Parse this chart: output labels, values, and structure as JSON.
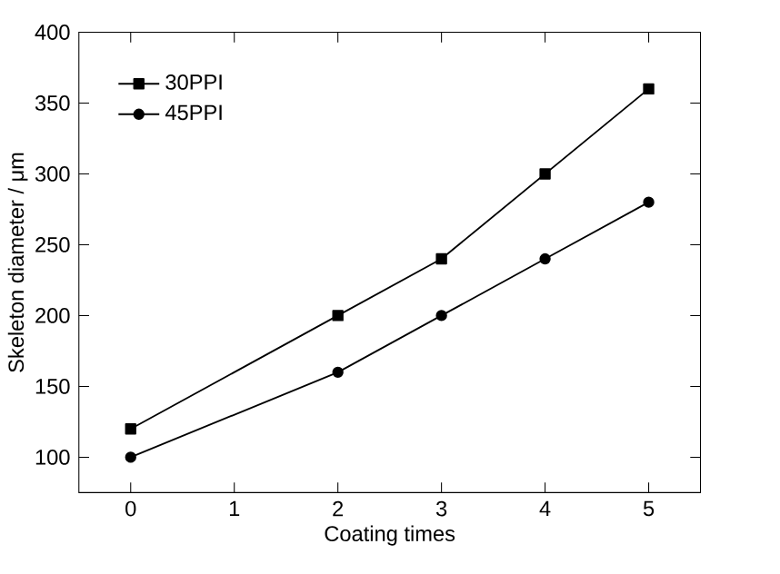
{
  "chart_data": {
    "type": "line",
    "xlabel": "Coating times",
    "ylabel": "Skeleton diameter / μm",
    "x": [
      0,
      2,
      3,
      4,
      5
    ],
    "series": [
      {
        "name": "30PPI",
        "color": "#000000",
        "marker": "square",
        "values": [
          120,
          200,
          240,
          300,
          360
        ]
      },
      {
        "name": "45PPI",
        "color": "#000000",
        "marker": "circle",
        "values": [
          100,
          160,
          200,
          240,
          280
        ]
      }
    ],
    "xlim": [
      -0.5,
      5.5
    ],
    "xticks": [
      0,
      1,
      2,
      3,
      4,
      5
    ],
    "ylim": [
      75,
      400
    ],
    "yticks": [
      100,
      150,
      200,
      250,
      300,
      350,
      400
    ],
    "legend": "top left",
    "grid": false,
    "line_style": "solid"
  }
}
